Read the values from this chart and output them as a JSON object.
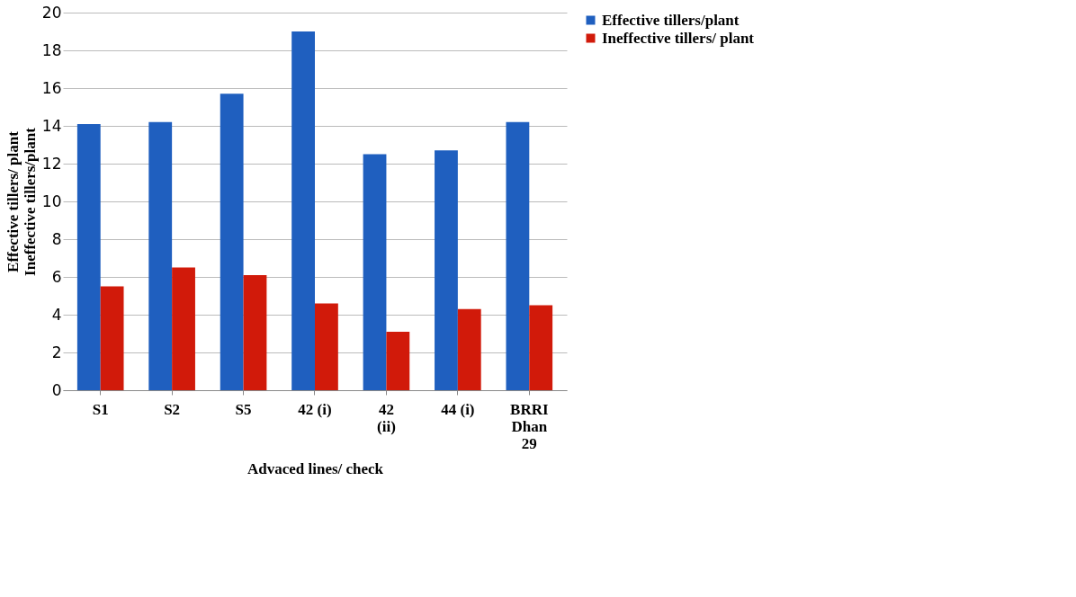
{
  "chart_data": {
    "type": "bar",
    "categories": [
      "S1",
      "S2",
      "S5",
      "42 (i)",
      "42 (ii)",
      "44 (i)",
      "BRRI Dhan 29"
    ],
    "series": [
      {
        "name": "Effective tillers/plant",
        "color": "#1f5fbf",
        "values": [
          14.1,
          14.2,
          15.7,
          19.0,
          12.5,
          12.7,
          14.2
        ]
      },
      {
        "name": "Ineffective tillers/ plant",
        "color": "#d11a0a",
        "values": [
          5.5,
          6.5,
          6.1,
          4.6,
          3.1,
          4.3,
          4.5
        ]
      }
    ],
    "xlabel": "Advaced lines/ check",
    "ylabel": "Effective tillers/ plant\nIneffective tillers/plant",
    "ylim": [
      0,
      20
    ],
    "yticks": [
      0,
      2,
      4,
      6,
      8,
      10,
      12,
      14,
      16,
      18,
      20
    ],
    "grid": "y",
    "legend": "right"
  }
}
